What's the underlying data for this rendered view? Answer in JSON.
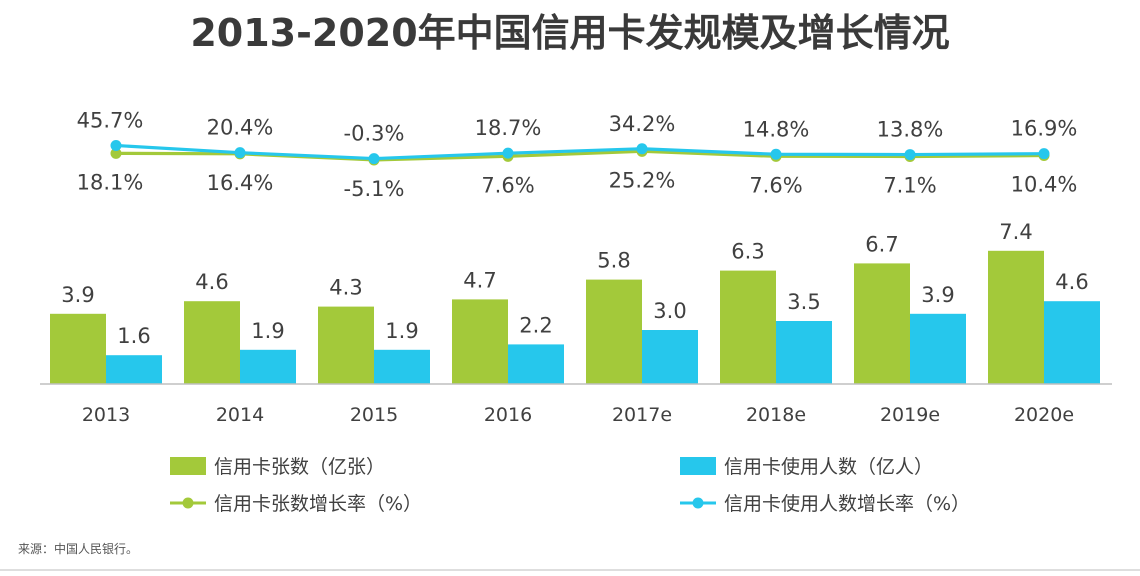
{
  "chart_data": {
    "type": "bar",
    "title": "2013-2020年中国信用卡发规模及增长情况",
    "categories": [
      "2013",
      "2014",
      "2015",
      "2016",
      "2017e",
      "2018e",
      "2019e",
      "2020e"
    ],
    "series": [
      {
        "name": "信用卡张数（亿张）",
        "kind": "bar",
        "color": "#a3c93a",
        "values": [
          3.9,
          4.6,
          4.3,
          4.7,
          5.8,
          6.3,
          6.7,
          7.4
        ],
        "labels": [
          "3.9",
          "4.6",
          "4.3",
          "4.7",
          "5.8",
          "6.3",
          "6.7",
          "7.4"
        ]
      },
      {
        "name": "信用卡使用人数（亿人）",
        "kind": "bar",
        "color": "#26c7ec",
        "values": [
          1.6,
          1.9,
          1.9,
          2.2,
          3.0,
          3.5,
          3.9,
          4.6
        ],
        "labels": [
          "1.6",
          "1.9",
          "1.9",
          "2.2",
          "3.0",
          "3.5",
          "3.9",
          "4.6"
        ]
      },
      {
        "name": "信用卡张数增长率（%）",
        "kind": "line",
        "color": "#a3c93a",
        "values": [
          18.1,
          16.4,
          -5.1,
          7.6,
          25.2,
          7.6,
          7.1,
          10.4
        ],
        "labels": [
          "18.1%",
          "16.4%",
          "-5.1%",
          "7.6%",
          "25.2%",
          "7.6%",
          "7.1%",
          "10.4%"
        ]
      },
      {
        "name": "信用卡使用人数增长率（%）",
        "kind": "line",
        "color": "#26c7ec",
        "values": [
          45.7,
          20.4,
          -0.3,
          18.7,
          34.2,
          14.8,
          13.8,
          16.9
        ],
        "labels": [
          "45.7%",
          "20.4%",
          "-0.3%",
          "18.7%",
          "34.2%",
          "14.8%",
          "13.8%",
          "16.9%"
        ]
      }
    ],
    "legend": {
      "placement": "bottom",
      "items": [
        {
          "label": "信用卡张数（亿张）",
          "marker": "bar",
          "color": "#a3c93a"
        },
        {
          "label": "信用卡使用人数（亿人）",
          "marker": "bar",
          "color": "#26c7ec"
        },
        {
          "label": "信用卡张数增长率（%）",
          "marker": "line",
          "color": "#a3c93a"
        },
        {
          "label": "信用卡使用人数增长率（%）",
          "marker": "line",
          "color": "#26c7ec"
        }
      ]
    },
    "grid": false,
    "source": "来源：中国人民银行。"
  }
}
